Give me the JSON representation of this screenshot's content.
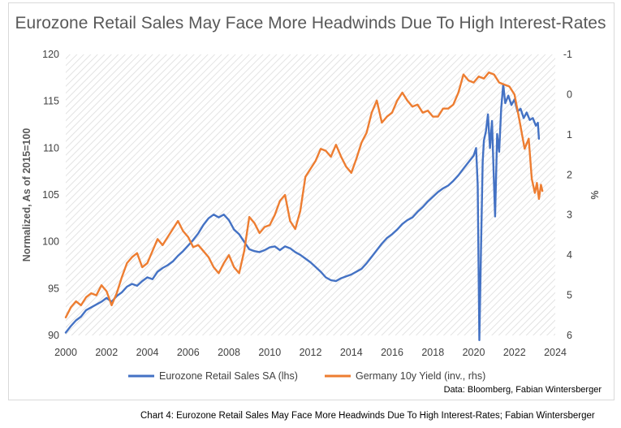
{
  "chart_data": {
    "type": "line",
    "title": "Eurozone Retail Sales May Face More Headwinds Due To High Interest-Rates",
    "ylabel": "Normalized, As of 2015=100",
    "y2label": "%",
    "xlim": [
      2000,
      2024
    ],
    "ylim": [
      90,
      120
    ],
    "y2lim": [
      -1,
      6
    ],
    "y2_inverted": true,
    "x_ticks": [
      2000,
      2002,
      2004,
      2006,
      2008,
      2010,
      2012,
      2014,
      2016,
      2018,
      2020,
      2022,
      2024
    ],
    "y_ticks": [
      90,
      95,
      100,
      105,
      110,
      115,
      120
    ],
    "y2_ticks": [
      -1,
      0,
      1,
      2,
      3,
      4,
      5,
      6
    ],
    "legend_position": "bottom",
    "grid": "diagonal hatch background",
    "series": [
      {
        "name": "Eurozone Retail Sales SA (lhs)",
        "axis": "left",
        "color": "#4472c4",
        "points": [
          [
            2000.0,
            90.3
          ],
          [
            2000.25,
            91.0
          ],
          [
            2000.5,
            91.6
          ],
          [
            2000.75,
            92.0
          ],
          [
            2001.0,
            92.7
          ],
          [
            2001.25,
            93.0
          ],
          [
            2001.5,
            93.3
          ],
          [
            2001.75,
            93.6
          ],
          [
            2002.0,
            94.0
          ],
          [
            2002.25,
            93.6
          ],
          [
            2002.5,
            94.2
          ],
          [
            2002.75,
            94.6
          ],
          [
            2003.0,
            95.2
          ],
          [
            2003.25,
            95.5
          ],
          [
            2003.5,
            95.3
          ],
          [
            2003.75,
            95.8
          ],
          [
            2004.0,
            96.2
          ],
          [
            2004.25,
            96.0
          ],
          [
            2004.5,
            96.8
          ],
          [
            2004.75,
            97.2
          ],
          [
            2005.0,
            97.5
          ],
          [
            2005.25,
            97.9
          ],
          [
            2005.5,
            98.5
          ],
          [
            2005.75,
            99.0
          ],
          [
            2006.0,
            99.6
          ],
          [
            2006.25,
            100.2
          ],
          [
            2006.5,
            100.9
          ],
          [
            2006.75,
            101.8
          ],
          [
            2007.0,
            102.5
          ],
          [
            2007.25,
            102.9
          ],
          [
            2007.5,
            102.6
          ],
          [
            2007.75,
            102.9
          ],
          [
            2008.0,
            102.3
          ],
          [
            2008.25,
            101.3
          ],
          [
            2008.5,
            100.8
          ],
          [
            2008.75,
            100.0
          ],
          [
            2009.0,
            99.2
          ],
          [
            2009.25,
            99.0
          ],
          [
            2009.5,
            98.9
          ],
          [
            2009.75,
            99.1
          ],
          [
            2010.0,
            99.4
          ],
          [
            2010.25,
            99.5
          ],
          [
            2010.5,
            99.1
          ],
          [
            2010.75,
            99.5
          ],
          [
            2011.0,
            99.3
          ],
          [
            2011.25,
            98.9
          ],
          [
            2011.5,
            98.6
          ],
          [
            2011.75,
            98.2
          ],
          [
            2012.0,
            97.8
          ],
          [
            2012.25,
            97.3
          ],
          [
            2012.5,
            96.8
          ],
          [
            2012.75,
            96.2
          ],
          [
            2013.0,
            95.9
          ],
          [
            2013.25,
            95.8
          ],
          [
            2013.5,
            96.1
          ],
          [
            2013.75,
            96.3
          ],
          [
            2014.0,
            96.5
          ],
          [
            2014.25,
            96.8
          ],
          [
            2014.5,
            97.1
          ],
          [
            2014.75,
            97.7
          ],
          [
            2015.0,
            98.4
          ],
          [
            2015.25,
            99.1
          ],
          [
            2015.5,
            99.8
          ],
          [
            2015.75,
            100.4
          ],
          [
            2016.0,
            100.8
          ],
          [
            2016.25,
            101.3
          ],
          [
            2016.5,
            101.9
          ],
          [
            2016.75,
            102.3
          ],
          [
            2017.0,
            102.6
          ],
          [
            2017.25,
            103.2
          ],
          [
            2017.5,
            103.7
          ],
          [
            2017.75,
            104.3
          ],
          [
            2018.0,
            104.8
          ],
          [
            2018.25,
            105.3
          ],
          [
            2018.5,
            105.7
          ],
          [
            2018.75,
            106.0
          ],
          [
            2019.0,
            106.5
          ],
          [
            2019.25,
            107.1
          ],
          [
            2019.5,
            107.8
          ],
          [
            2019.75,
            108.5
          ],
          [
            2020.0,
            109.2
          ],
          [
            2020.12,
            110.0
          ],
          [
            2020.2,
            106.0
          ],
          [
            2020.28,
            89.5
          ],
          [
            2020.36,
            99.0
          ],
          [
            2020.44,
            108.5
          ],
          [
            2020.5,
            110.8
          ],
          [
            2020.6,
            111.8
          ],
          [
            2020.7,
            113.6
          ],
          [
            2020.8,
            110.0
          ],
          [
            2020.9,
            112.9
          ],
          [
            2020.98,
            107.4
          ],
          [
            2021.05,
            102.7
          ],
          [
            2021.15,
            111.5
          ],
          [
            2021.25,
            109.6
          ],
          [
            2021.35,
            114.2
          ],
          [
            2021.45,
            116.8
          ],
          [
            2021.55,
            114.8
          ],
          [
            2021.7,
            115.6
          ],
          [
            2021.85,
            114.6
          ],
          [
            2022.0,
            115.2
          ],
          [
            2022.15,
            113.9
          ],
          [
            2022.3,
            114.2
          ],
          [
            2022.45,
            113.2
          ],
          [
            2022.6,
            113.8
          ],
          [
            2022.75,
            113.0
          ],
          [
            2022.9,
            113.2
          ],
          [
            2023.05,
            112.4
          ],
          [
            2023.15,
            112.7
          ],
          [
            2023.2,
            111.0
          ]
        ]
      },
      {
        "name": "Germany 10y Yield (inv., rhs)",
        "axis": "right",
        "color": "#ed7d31",
        "points": [
          [
            2000.0,
            5.55
          ],
          [
            2000.25,
            5.3
          ],
          [
            2000.5,
            5.15
          ],
          [
            2000.75,
            5.25
          ],
          [
            2001.0,
            5.05
          ],
          [
            2001.25,
            4.95
          ],
          [
            2001.5,
            5.0
          ],
          [
            2001.75,
            4.75
          ],
          [
            2002.0,
            4.9
          ],
          [
            2002.25,
            5.25
          ],
          [
            2002.5,
            4.95
          ],
          [
            2002.75,
            4.55
          ],
          [
            2003.0,
            4.2
          ],
          [
            2003.25,
            4.05
          ],
          [
            2003.5,
            3.95
          ],
          [
            2003.75,
            4.3
          ],
          [
            2004.0,
            4.2
          ],
          [
            2004.25,
            3.9
          ],
          [
            2004.5,
            3.6
          ],
          [
            2004.75,
            3.75
          ],
          [
            2005.0,
            3.55
          ],
          [
            2005.25,
            3.35
          ],
          [
            2005.5,
            3.15
          ],
          [
            2005.75,
            3.4
          ],
          [
            2006.0,
            3.55
          ],
          [
            2006.25,
            3.8
          ],
          [
            2006.5,
            3.75
          ],
          [
            2006.75,
            3.9
          ],
          [
            2007.0,
            4.05
          ],
          [
            2007.25,
            4.3
          ],
          [
            2007.5,
            4.45
          ],
          [
            2007.75,
            4.2
          ],
          [
            2008.0,
            4.0
          ],
          [
            2008.25,
            4.3
          ],
          [
            2008.5,
            4.45
          ],
          [
            2008.75,
            3.9
          ],
          [
            2009.0,
            3.05
          ],
          [
            2009.25,
            3.2
          ],
          [
            2009.5,
            3.45
          ],
          [
            2009.75,
            3.3
          ],
          [
            2010.0,
            3.25
          ],
          [
            2010.25,
            3.0
          ],
          [
            2010.5,
            2.65
          ],
          [
            2010.75,
            2.5
          ],
          [
            2011.0,
            3.15
          ],
          [
            2011.25,
            3.35
          ],
          [
            2011.5,
            2.9
          ],
          [
            2011.75,
            2.05
          ],
          [
            2012.0,
            1.85
          ],
          [
            2012.25,
            1.65
          ],
          [
            2012.5,
            1.35
          ],
          [
            2012.75,
            1.4
          ],
          [
            2013.0,
            1.55
          ],
          [
            2013.25,
            1.25
          ],
          [
            2013.5,
            1.55
          ],
          [
            2013.75,
            1.8
          ],
          [
            2014.0,
            1.95
          ],
          [
            2014.25,
            1.6
          ],
          [
            2014.5,
            1.2
          ],
          [
            2014.75,
            0.95
          ],
          [
            2015.0,
            0.45
          ],
          [
            2015.25,
            0.15
          ],
          [
            2015.5,
            0.7
          ],
          [
            2015.75,
            0.55
          ],
          [
            2016.0,
            0.45
          ],
          [
            2016.25,
            0.15
          ],
          [
            2016.5,
            -0.05
          ],
          [
            2016.75,
            0.15
          ],
          [
            2017.0,
            0.3
          ],
          [
            2017.25,
            0.25
          ],
          [
            2017.5,
            0.45
          ],
          [
            2017.75,
            0.4
          ],
          [
            2018.0,
            0.55
          ],
          [
            2018.25,
            0.55
          ],
          [
            2018.5,
            0.35
          ],
          [
            2018.75,
            0.35
          ],
          [
            2019.0,
            0.25
          ],
          [
            2019.25,
            -0.05
          ],
          [
            2019.5,
            -0.5
          ],
          [
            2019.75,
            -0.35
          ],
          [
            2020.0,
            -0.3
          ],
          [
            2020.25,
            -0.45
          ],
          [
            2020.5,
            -0.4
          ],
          [
            2020.75,
            -0.55
          ],
          [
            2021.0,
            -0.5
          ],
          [
            2021.25,
            -0.3
          ],
          [
            2021.5,
            -0.25
          ],
          [
            2021.75,
            -0.2
          ],
          [
            2022.0,
            0.0
          ],
          [
            2022.25,
            0.65
          ],
          [
            2022.5,
            1.35
          ],
          [
            2022.7,
            1.1
          ],
          [
            2022.85,
            2.1
          ],
          [
            2023.0,
            2.45
          ],
          [
            2023.1,
            2.2
          ],
          [
            2023.2,
            2.6
          ],
          [
            2023.3,
            2.25
          ],
          [
            2023.37,
            2.4
          ]
        ]
      }
    ]
  },
  "source_note": "Data: Bloomberg, Fabian Wintersberger",
  "caption": "Chart 4: Eurozone Retail Sales May Face More Headwinds Due To High Interest-Rates; Fabian Wintersberger"
}
